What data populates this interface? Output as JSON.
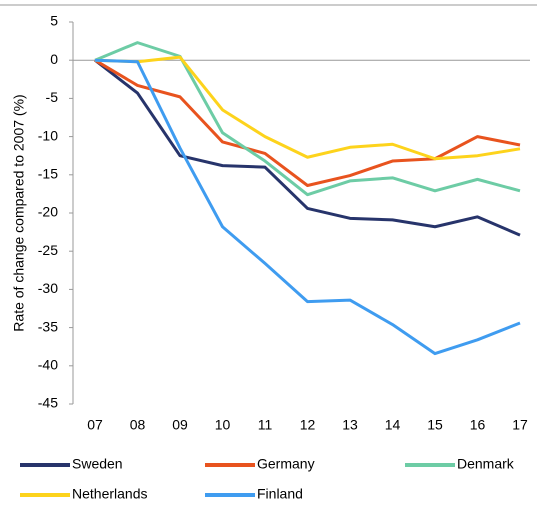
{
  "chart_data": {
    "type": "line",
    "y_label": "Rate of change compared to 2007 (%)",
    "categories": [
      "07",
      "08",
      "09",
      "10",
      "11",
      "12",
      "13",
      "14",
      "15",
      "16",
      "17"
    ],
    "series": [
      {
        "name": "Sweden",
        "color": "#27346b",
        "values": [
          0,
          -4.3,
          -12.5,
          -13.8,
          -14,
          -19.4,
          -20.7,
          -20.9,
          -21.8,
          -20.5,
          -22.9
        ]
      },
      {
        "name": "Germany",
        "color": "#e8531e",
        "values": [
          0,
          -3.3,
          -4.8,
          -10.7,
          -12.2,
          -16.4,
          -15.1,
          -13.2,
          -12.9,
          -10,
          -11.1
        ]
      },
      {
        "name": "Denmark",
        "color": "#6dcca5",
        "values": [
          0,
          2.3,
          0.5,
          -9.5,
          -13.2,
          -17.6,
          -15.8,
          -15.4,
          -17.1,
          -15.6,
          -17.1
        ]
      },
      {
        "name": "Netherlands",
        "color": "#fdd31c",
        "values": [
          0,
          -0.2,
          0.4,
          -6.5,
          -10,
          -12.7,
          -11.4,
          -11,
          -12.9,
          -12.5,
          -11.6
        ]
      },
      {
        "name": "Finland",
        "color": "#3f9cf0",
        "values": [
          0,
          -0.2,
          -11.5,
          -21.8,
          -26.6,
          -31.6,
          -31.4,
          -34.6,
          -38.4,
          -36.6,
          -34.4
        ]
      }
    ],
    "ylim": [
      -45,
      5
    ],
    "yticks": [
      5,
      0,
      -5,
      -10,
      -15,
      -20,
      -25,
      -30,
      -35,
      -40,
      -45
    ],
    "legend": "bottom"
  }
}
